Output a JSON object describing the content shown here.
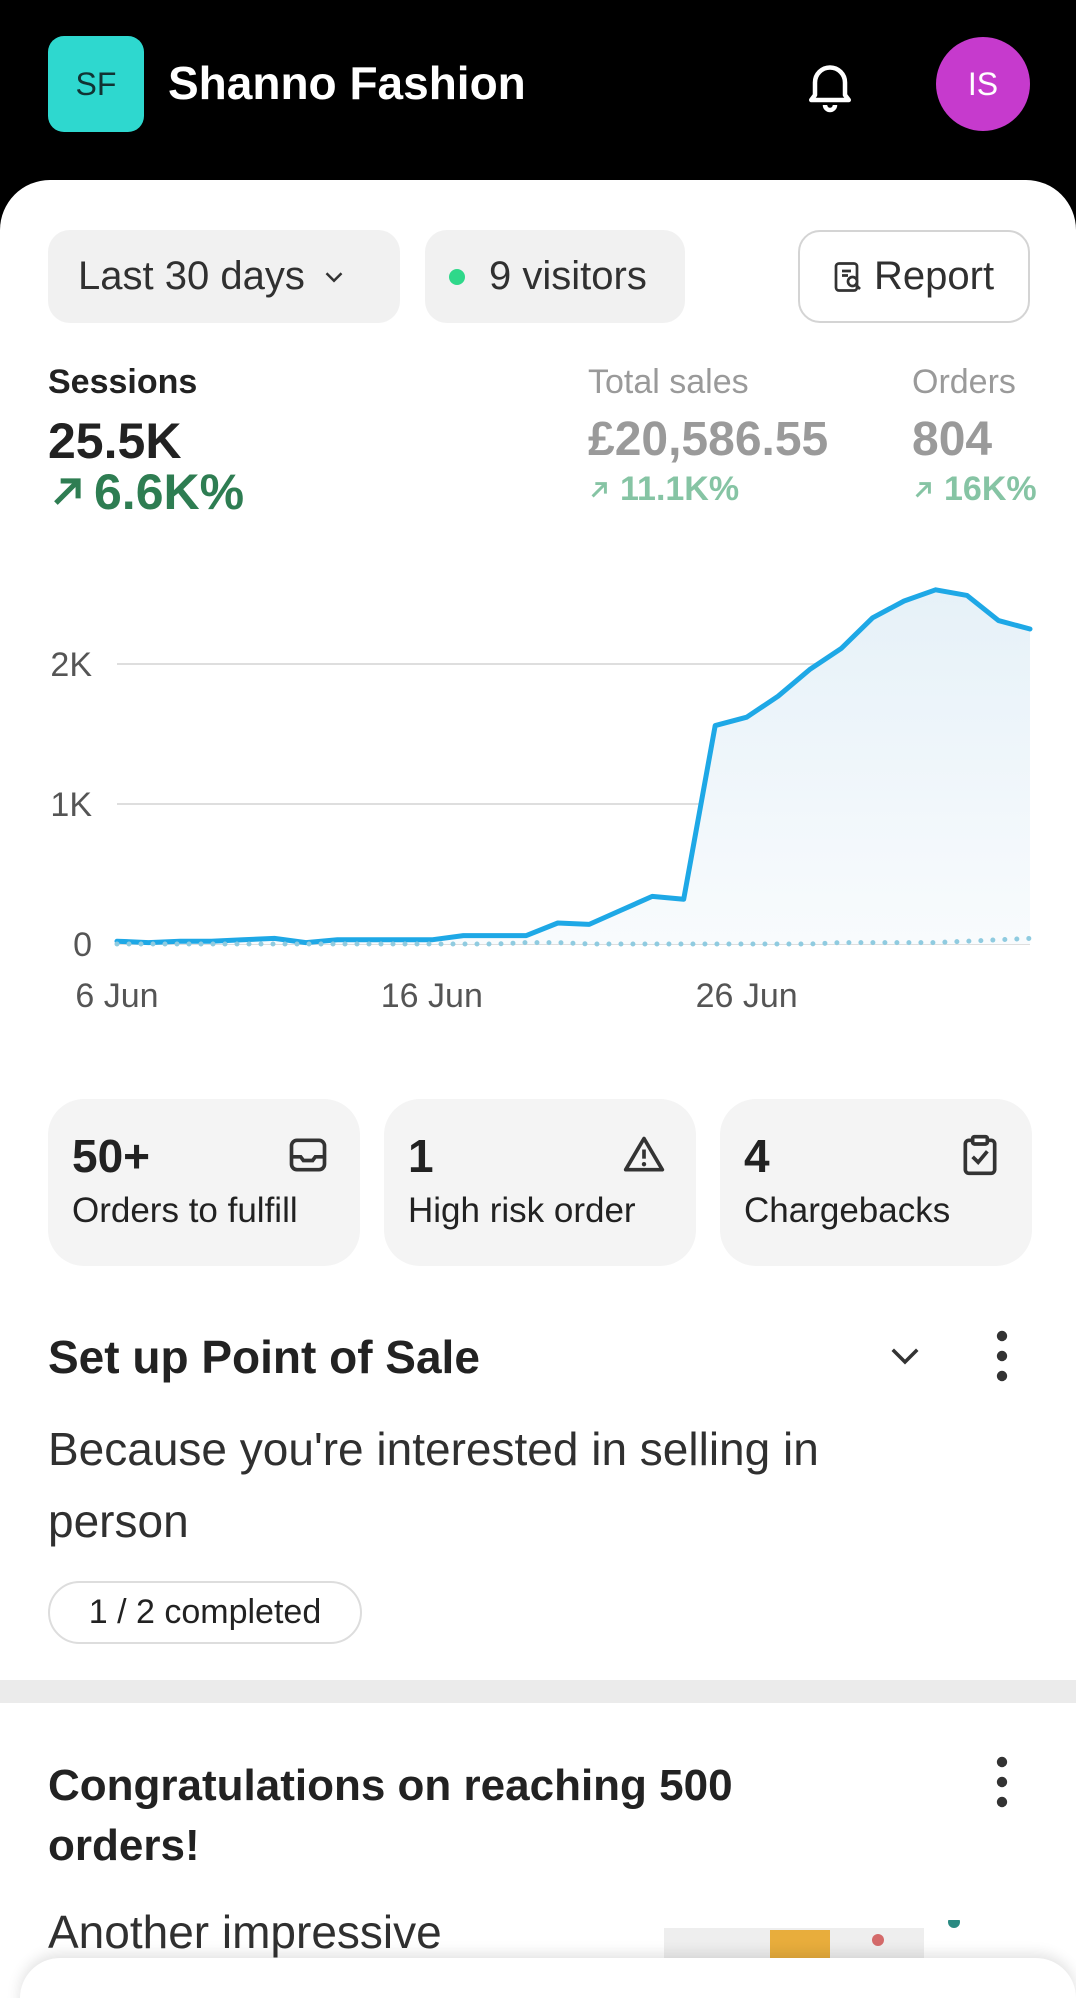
{
  "header": {
    "logo": "SF",
    "store_name": "Shanno Fashion",
    "avatar": "IS"
  },
  "filters": {
    "date_range": "Last 30 days",
    "visitors": "9 visitors",
    "report": "Report"
  },
  "metrics": [
    {
      "label": "Sessions",
      "value": "25.5K",
      "change": "6.6K%"
    },
    {
      "label": "Total sales",
      "value": "£20,586.55",
      "change": "11.1K%"
    },
    {
      "label": "Orders",
      "value": "804",
      "change": "16K%"
    }
  ],
  "chart": {
    "type": "line",
    "categories": [
      "6 Jun",
      null,
      null,
      null,
      null,
      null,
      null,
      null,
      null,
      null,
      "16 Jun",
      null,
      null,
      null,
      null,
      null,
      null,
      null,
      null,
      null,
      "26 Jun",
      null,
      null,
      null,
      null,
      null,
      null,
      null,
      null,
      null
    ],
    "series": [
      {
        "color": "#1ea8e6",
        "values": [
          20,
          10,
          20,
          20,
          30,
          40,
          10,
          30,
          30,
          30,
          30,
          60,
          60,
          60,
          150,
          140,
          240,
          340,
          320,
          1560,
          1620,
          1770,
          1960,
          2110,
          2330,
          2450,
          2530,
          2490,
          2310,
          2250
        ]
      },
      {
        "color": "#8fcbe0",
        "dotted": true,
        "values": [
          0,
          0,
          0,
          0,
          0,
          0,
          0,
          0,
          0,
          0,
          0,
          0,
          0,
          10,
          10,
          0,
          0,
          0,
          0,
          0,
          0,
          0,
          0,
          10,
          10,
          10,
          10,
          20,
          30,
          40
        ]
      }
    ],
    "ylim": [
      0,
      2600
    ],
    "yticks": [
      0,
      {
        "value": 1000,
        "label": "1K"
      },
      {
        "value": 2000,
        "label": "2K"
      }
    ],
    "grid": true
  },
  "tasks": [
    {
      "count": "50+",
      "label": "Orders to fulfill"
    },
    {
      "count": "1",
      "label": "High risk order"
    },
    {
      "count": "4",
      "label": "Chargebacks"
    }
  ],
  "setup": {
    "title": "Set up Point of Sale",
    "body": "Because you're interested in selling in person",
    "progress": "1 / 2 completed"
  },
  "congrats": {
    "title": "Congratulations on reaching 500 orders!",
    "body": "Another impressive"
  }
}
